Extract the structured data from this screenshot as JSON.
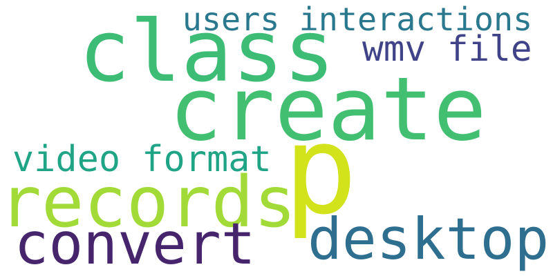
{
  "word_cloud": {
    "words": [
      {
        "id": "users-interactions",
        "text": "users interactions",
        "color": "#2a788e"
      },
      {
        "id": "class",
        "text": "class",
        "color": "#3cbc75"
      },
      {
        "id": "wmv-file",
        "text": "wmv file",
        "color": "#404387"
      },
      {
        "id": "create",
        "text": "create",
        "color": "#43bf71"
      },
      {
        "id": "p",
        "text": "p",
        "color": "#d2e21b"
      },
      {
        "id": "video-format",
        "text": "video format",
        "color": "#20a486"
      },
      {
        "id": "records",
        "text": "records",
        "color": "#a2da37"
      },
      {
        "id": "convert",
        "text": "convert",
        "color": "#46256d"
      },
      {
        "id": "desktop",
        "text": "desktop",
        "color": "#2e6e8e"
      }
    ]
  }
}
